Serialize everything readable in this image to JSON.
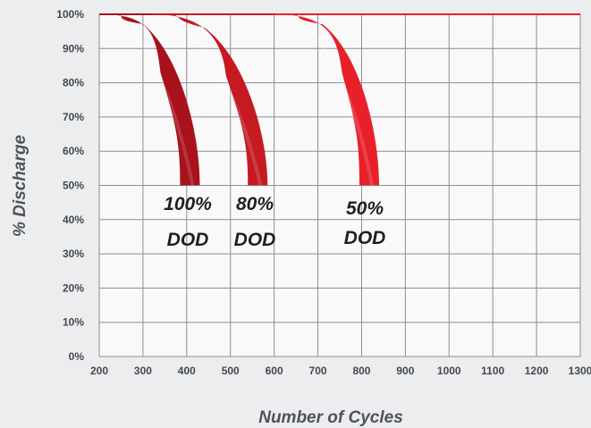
{
  "chart_data": {
    "type": "area",
    "xlabel": "Number of Cycles",
    "ylabel": "% Discharge",
    "xlim": [
      200,
      1300
    ],
    "ylim": [
      0,
      100
    ],
    "x_ticks": [
      "200",
      "300",
      "400",
      "500",
      "600",
      "700",
      "800",
      "900",
      "1000",
      "1100",
      "1200",
      "1300"
    ],
    "y_ticks": [
      "0%",
      "10%",
      "20%",
      "30%",
      "40%",
      "50%",
      "60%",
      "70%",
      "80%",
      "90%",
      "100%"
    ],
    "grid": true,
    "background_color": "#ecedef",
    "grid_color": "#8a8d91",
    "series": [
      {
        "band_label": [
          "100%",
          "DOD"
        ],
        "color": "#a8121b",
        "points": [
          [
            200,
            100
          ],
          [
            280,
            95
          ],
          [
            340,
            83
          ],
          [
            375,
            68
          ],
          [
            385,
            50
          ]
        ],
        "end_width": 40,
        "label_at": [
          400,
          50
        ]
      },
      {
        "band_label": [
          "80%",
          "DOD"
        ],
        "color": "#c61a23",
        "points": [
          [
            320,
            100
          ],
          [
            420,
            94
          ],
          [
            490,
            82
          ],
          [
            530,
            67
          ],
          [
            540,
            50
          ]
        ],
        "end_width": 40,
        "label_at": [
          560,
          50
        ]
      },
      {
        "band_label": [
          "50%",
          "DOD"
        ],
        "color": "#e8202a",
        "points": [
          [
            600,
            100
          ],
          [
            690,
            95
          ],
          [
            755,
            83
          ],
          [
            790,
            67
          ],
          [
            795,
            50
          ]
        ],
        "end_width": 40,
        "label_at": [
          820,
          50
        ]
      }
    ]
  }
}
